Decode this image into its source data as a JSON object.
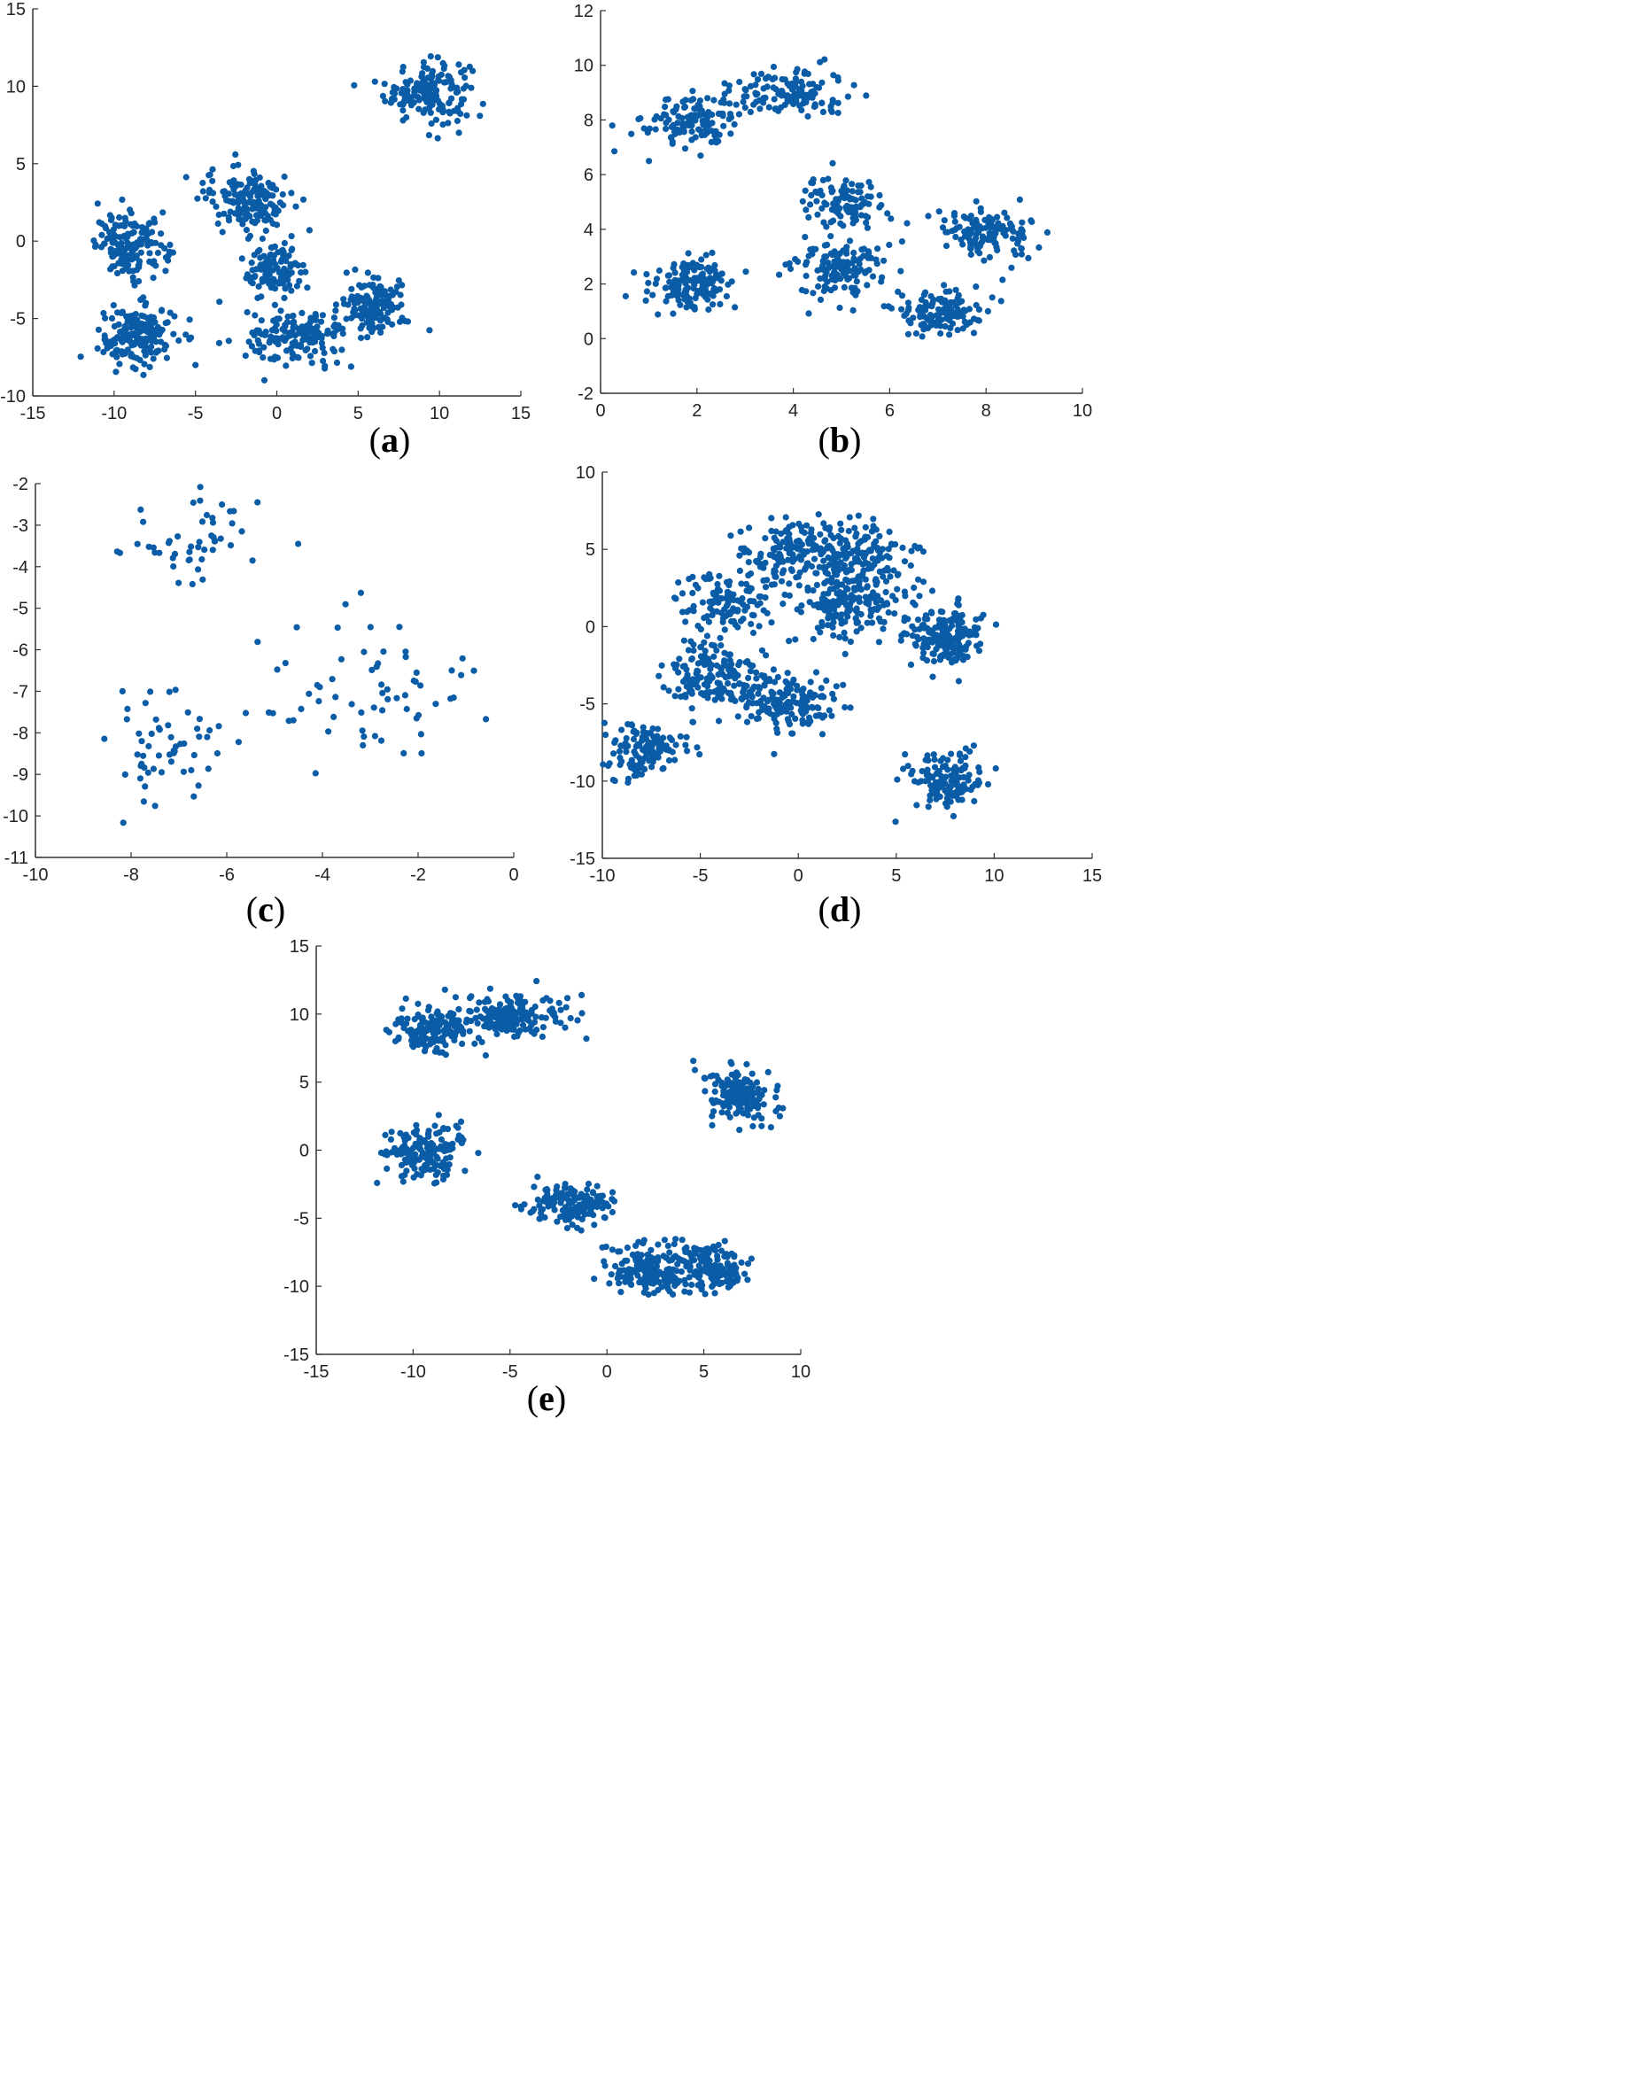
{
  "colors": {
    "point": "#0a5ca6",
    "axis": "#333333",
    "background": "#ffffff"
  },
  "chart_data": [
    {
      "id": "a",
      "type": "scatter",
      "label_letter": "a",
      "xlim": [
        -15,
        15
      ],
      "ylim": [
        -10,
        15
      ],
      "xticks": [
        -15,
        -10,
        -5,
        0,
        5,
        10,
        15
      ],
      "yticks": [
        -10,
        -5,
        0,
        5,
        10,
        15
      ],
      "grid": false,
      "clusters": [
        {
          "center": [
            9.3,
            9.7
          ],
          "spread": [
            1.3,
            1.0
          ],
          "count": 160
        },
        {
          "center": [
            -8.9,
            -0.3
          ],
          "spread": [
            1.1,
            1.0
          ],
          "count": 160
        },
        {
          "center": [
            -8.6,
            -6.2
          ],
          "spread": [
            1.2,
            1.0
          ],
          "count": 170
        },
        {
          "center": [
            -1.8,
            2.8
          ],
          "spread": [
            1.3,
            1.0
          ],
          "count": 150
        },
        {
          "center": [
            0.0,
            -1.8
          ],
          "spread": [
            1.0,
            0.9
          ],
          "count": 110
        },
        {
          "center": [
            1.2,
            -6.3
          ],
          "spread": [
            1.5,
            0.9
          ],
          "count": 160
        },
        {
          "center": [
            6.0,
            -4.2
          ],
          "spread": [
            1.0,
            0.9
          ],
          "count": 140
        }
      ]
    },
    {
      "id": "b",
      "type": "scatter",
      "label_letter": "b",
      "xlim": [
        0,
        10
      ],
      "ylim": [
        -2,
        12
      ],
      "xticks": [
        0,
        2,
        4,
        6,
        8,
        10
      ],
      "yticks": [
        -2,
        0,
        2,
        4,
        6,
        8,
        10,
        12
      ],
      "grid": false,
      "clusters": [
        {
          "center": [
            1.9,
            8.0
          ],
          "spread": [
            0.5,
            0.5
          ],
          "count": 130
        },
        {
          "center": [
            3.9,
            9.0
          ],
          "spread": [
            0.6,
            0.45
          ],
          "count": 130
        },
        {
          "center": [
            1.9,
            2.0
          ],
          "spread": [
            0.45,
            0.45
          ],
          "count": 140
        },
        {
          "center": [
            5.0,
            5.0
          ],
          "spread": [
            0.4,
            0.45
          ],
          "count": 110
        },
        {
          "center": [
            4.9,
            2.5
          ],
          "spread": [
            0.5,
            0.5
          ],
          "count": 130
        },
        {
          "center": [
            7.0,
            1.0
          ],
          "spread": [
            0.45,
            0.4
          ],
          "count": 130
        },
        {
          "center": [
            8.0,
            3.8
          ],
          "spread": [
            0.5,
            0.45
          ],
          "count": 130
        }
      ]
    },
    {
      "id": "c",
      "type": "scatter",
      "label_letter": "c",
      "xlim": [
        -10,
        0
      ],
      "ylim": [
        -11,
        -2
      ],
      "xticks": [
        -10,
        -8,
        -6,
        -4,
        -2,
        0
      ],
      "yticks": [
        -11,
        -10,
        -9,
        -8,
        -7,
        -6,
        -5,
        -4,
        -3,
        -2
      ],
      "grid": false,
      "clusters": [
        {
          "center": [
            -6.5,
            -3.3
          ],
          "spread": [
            0.9,
            0.6
          ],
          "count": 50
        },
        {
          "center": [
            -7.3,
            -8.4
          ],
          "spread": [
            0.7,
            0.8
          ],
          "count": 55
        },
        {
          "center": [
            -3.0,
            -7.0
          ],
          "spread": [
            1.1,
            0.9
          ],
          "count": 65
        }
      ]
    },
    {
      "id": "d",
      "type": "scatter",
      "label_letter": "d",
      "xlim": [
        -10,
        15
      ],
      "ylim": [
        -15,
        10
      ],
      "xticks": [
        -10,
        -5,
        0,
        5,
        10,
        15
      ],
      "yticks": [
        -15,
        -10,
        -5,
        0,
        5,
        10
      ],
      "grid": false,
      "clusters": [
        {
          "center": [
            -0.2,
            4.8
          ],
          "spread": [
            1.4,
            1.1
          ],
          "count": 150
        },
        {
          "center": [
            3.2,
            4.4
          ],
          "spread": [
            1.2,
            1.1
          ],
          "count": 150
        },
        {
          "center": [
            2.6,
            1.2
          ],
          "spread": [
            1.4,
            1.1
          ],
          "count": 160
        },
        {
          "center": [
            -3.8,
            1.5
          ],
          "spread": [
            1.1,
            1.0
          ],
          "count": 120
        },
        {
          "center": [
            7.3,
            -0.6
          ],
          "spread": [
            1.0,
            1.1
          ],
          "count": 170
        },
        {
          "center": [
            -4.4,
            -3.2
          ],
          "spread": [
            1.3,
            1.1
          ],
          "count": 150
        },
        {
          "center": [
            -0.9,
            -4.9
          ],
          "spread": [
            1.4,
            0.9
          ],
          "count": 170
        },
        {
          "center": [
            -7.8,
            -8.0
          ],
          "spread": [
            1.0,
            0.9
          ],
          "count": 130
        },
        {
          "center": [
            7.6,
            -9.9
          ],
          "spread": [
            1.0,
            0.9
          ],
          "count": 130
        }
      ]
    },
    {
      "id": "e",
      "type": "scatter",
      "label_letter": "e",
      "xlim": [
        -15,
        10
      ],
      "ylim": [
        -15,
        15
      ],
      "xticks": [
        -15,
        -10,
        -5,
        0,
        5,
        10
      ],
      "yticks": [
        -15,
        -10,
        -5,
        0,
        5,
        10,
        15
      ],
      "grid": false,
      "clusters": [
        {
          "center": [
            -8.9,
            8.9
          ],
          "spread": [
            1.1,
            0.9
          ],
          "count": 160
        },
        {
          "center": [
            -4.9,
            9.9
          ],
          "spread": [
            1.3,
            0.8
          ],
          "count": 160
        },
        {
          "center": [
            -9.4,
            -0.1
          ],
          "spread": [
            1.0,
            1.0
          ],
          "count": 160
        },
        {
          "center": [
            6.7,
            4.0
          ],
          "spread": [
            0.9,
            1.0
          ],
          "count": 160
        },
        {
          "center": [
            -1.9,
            -3.9
          ],
          "spread": [
            1.0,
            0.8
          ],
          "count": 150
        },
        {
          "center": [
            2.1,
            -8.8
          ],
          "spread": [
            1.1,
            0.9
          ],
          "count": 150
        },
        {
          "center": [
            5.4,
            -8.6
          ],
          "spread": [
            1.1,
            0.9
          ],
          "count": 160
        }
      ]
    }
  ]
}
